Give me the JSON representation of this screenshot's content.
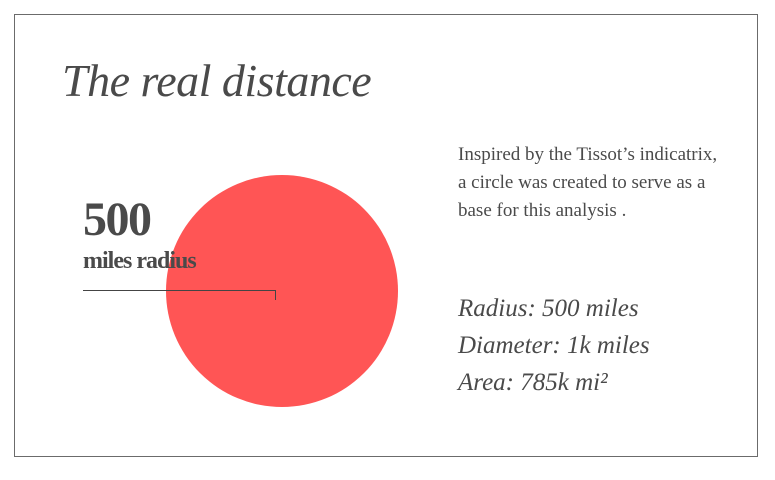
{
  "title": "The real distance",
  "callout": {
    "value": "500",
    "unit": "miles radius"
  },
  "description": "Inspired by the Tissot’s indicatrix, a circle was created to serve as a base for this analysis .",
  "stats": {
    "radius": "Radius: 500 miles",
    "diameter": "Diameter: 1k miles",
    "area": "Area: 785k mi²"
  },
  "colors": {
    "circle": "#ff5555",
    "text": "#4a4a4a",
    "frame": "#6b6b6b"
  }
}
